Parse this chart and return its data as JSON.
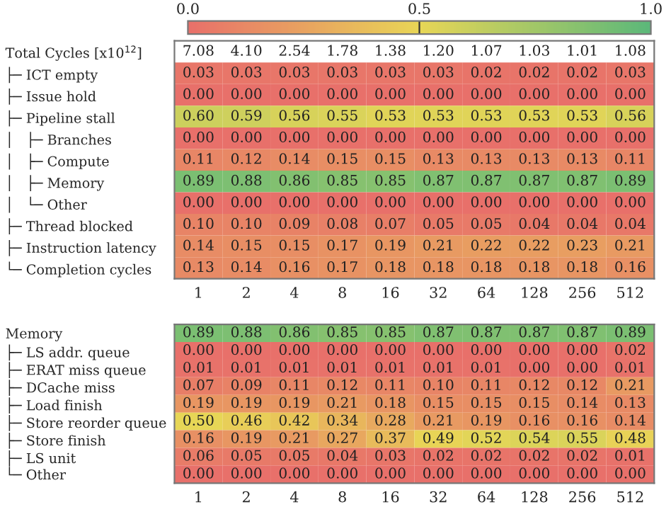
{
  "chart_data": [
    {
      "type": "heatmap",
      "categories": [
        "1",
        "2",
        "4",
        "8",
        "16",
        "32",
        "64",
        "128",
        "256",
        "512"
      ],
      "y_categories": [
        "Total Cycles [x10$^{12}$]",
        "├─ ICT empty",
        "├─ Issue hold",
        "├─ Pipeline stall",
        "│   ├─ Branches",
        "│   ├─ Compute",
        "│   ├─ Memory",
        "│   └─ Other",
        "├─ Thread blocked",
        "├─ Instruction latency",
        "└─ Completion cycles"
      ],
      "cells": [
        [
          null,
          null,
          null,
          null,
          null,
          null,
          null,
          null,
          null,
          null
        ],
        [
          0.03,
          0.03,
          0.03,
          0.03,
          0.03,
          0.03,
          0.02,
          0.02,
          0.02,
          0.03
        ],
        [
          0.0,
          0.0,
          0.0,
          0.0,
          0.0,
          0.0,
          0.0,
          0.0,
          0.0,
          0.0
        ],
        [
          0.6,
          0.59,
          0.56,
          0.55,
          0.53,
          0.53,
          0.53,
          0.53,
          0.53,
          0.56
        ],
        [
          0.0,
          0.0,
          0.0,
          0.0,
          0.0,
          0.0,
          0.0,
          0.0,
          0.0,
          0.0
        ],
        [
          0.11,
          0.12,
          0.14,
          0.15,
          0.15,
          0.13,
          0.13,
          0.13,
          0.13,
          0.11
        ],
        [
          0.89,
          0.88,
          0.86,
          0.85,
          0.85,
          0.87,
          0.87,
          0.87,
          0.87,
          0.89
        ],
        [
          0.0,
          0.0,
          0.0,
          0.0,
          0.0,
          0.0,
          0.0,
          0.0,
          0.0,
          0.0
        ],
        [
          0.1,
          0.1,
          0.09,
          0.08,
          0.07,
          0.05,
          0.05,
          0.04,
          0.04,
          0.04
        ],
        [
          0.14,
          0.15,
          0.15,
          0.17,
          0.19,
          0.21,
          0.22,
          0.22,
          0.23,
          0.21
        ],
        [
          0.13,
          0.14,
          0.16,
          0.17,
          0.18,
          0.18,
          0.18,
          0.18,
          0.18,
          0.16
        ]
      ],
      "cell_labels": [
        [
          "7.08",
          "4.10",
          "2.54",
          "1.78",
          "1.38",
          "1.20",
          "1.07",
          "1.03",
          "1.01",
          "1.08"
        ],
        [
          "0.03",
          "0.03",
          "0.03",
          "0.03",
          "0.03",
          "0.03",
          "0.02",
          "0.02",
          "0.02",
          "0.03"
        ],
        [
          "0.00",
          "0.00",
          "0.00",
          "0.00",
          "0.00",
          "0.00",
          "0.00",
          "0.00",
          "0.00",
          "0.00"
        ],
        [
          "0.60",
          "0.59",
          "0.56",
          "0.55",
          "0.53",
          "0.53",
          "0.53",
          "0.53",
          "0.53",
          "0.56"
        ],
        [
          "0.00",
          "0.00",
          "0.00",
          "0.00",
          "0.00",
          "0.00",
          "0.00",
          "0.00",
          "0.00",
          "0.00"
        ],
        [
          "0.11",
          "0.12",
          "0.14",
          "0.15",
          "0.15",
          "0.13",
          "0.13",
          "0.13",
          "0.13",
          "0.11"
        ],
        [
          "0.89",
          "0.88",
          "0.86",
          "0.85",
          "0.85",
          "0.87",
          "0.87",
          "0.87",
          "0.87",
          "0.89"
        ],
        [
          "0.00",
          "0.00",
          "0.00",
          "0.00",
          "0.00",
          "0.00",
          "0.00",
          "0.00",
          "0.00",
          "0.00"
        ],
        [
          "0.10",
          "0.10",
          "0.09",
          "0.08",
          "0.07",
          "0.05",
          "0.05",
          "0.04",
          "0.04",
          "0.04"
        ],
        [
          "0.14",
          "0.15",
          "0.15",
          "0.17",
          "0.19",
          "0.21",
          "0.22",
          "0.22",
          "0.23",
          "0.21"
        ],
        [
          "0.13",
          "0.14",
          "0.16",
          "0.17",
          "0.18",
          "0.18",
          "0.18",
          "0.18",
          "0.18",
          "0.16"
        ]
      ],
      "clim": [
        0.0,
        1.0
      ],
      "cticks": [
        {
          "value": 0.0,
          "label": "0.0"
        },
        {
          "value": 0.5,
          "label": "0.5"
        },
        {
          "value": 1.0,
          "label": "1.0"
        }
      ]
    },
    {
      "type": "heatmap",
      "categories": [
        "1",
        "2",
        "4",
        "8",
        "16",
        "32",
        "64",
        "128",
        "256",
        "512"
      ],
      "y_categories": [
        "Memory",
        "├─ LS addr. queue",
        "├─ ERAT miss queue",
        "├─ DCache miss",
        "├─ Load finish",
        "├─ Store reorder queue",
        "├─ Store finish",
        "├─ LS unit",
        "└─ Other"
      ],
      "cells": [
        [
          0.89,
          0.88,
          0.86,
          0.85,
          0.85,
          0.87,
          0.87,
          0.87,
          0.87,
          0.89
        ],
        [
          0.0,
          0.0,
          0.0,
          0.0,
          0.0,
          0.0,
          0.0,
          0.0,
          0.0,
          0.02
        ],
        [
          0.01,
          0.01,
          0.01,
          0.01,
          0.01,
          0.01,
          0.01,
          0.0,
          0.0,
          0.01
        ],
        [
          0.07,
          0.09,
          0.11,
          0.12,
          0.11,
          0.1,
          0.11,
          0.12,
          0.12,
          0.21
        ],
        [
          0.19,
          0.19,
          0.19,
          0.21,
          0.18,
          0.15,
          0.15,
          0.15,
          0.14,
          0.13
        ],
        [
          0.5,
          0.46,
          0.42,
          0.34,
          0.28,
          0.21,
          0.19,
          0.16,
          0.16,
          0.14
        ],
        [
          0.16,
          0.19,
          0.21,
          0.27,
          0.37,
          0.49,
          0.52,
          0.54,
          0.55,
          0.48
        ],
        [
          0.06,
          0.05,
          0.05,
          0.04,
          0.03,
          0.02,
          0.02,
          0.02,
          0.02,
          0.01
        ],
        [
          0.0,
          0.0,
          0.0,
          0.0,
          0.0,
          0.0,
          0.0,
          0.0,
          0.0,
          0.0
        ]
      ],
      "cell_labels": [
        [
          "0.89",
          "0.88",
          "0.86",
          "0.85",
          "0.85",
          "0.87",
          "0.87",
          "0.87",
          "0.87",
          "0.89"
        ],
        [
          "0.00",
          "0.00",
          "0.00",
          "0.00",
          "0.00",
          "0.00",
          "0.00",
          "0.00",
          "0.00",
          "0.02"
        ],
        [
          "0.01",
          "0.01",
          "0.01",
          "0.01",
          "0.01",
          "0.01",
          "0.01",
          "0.00",
          "0.00",
          "0.01"
        ],
        [
          "0.07",
          "0.09",
          "0.11",
          "0.12",
          "0.11",
          "0.10",
          "0.11",
          "0.12",
          "0.12",
          "0.21"
        ],
        [
          "0.19",
          "0.19",
          "0.19",
          "0.21",
          "0.18",
          "0.15",
          "0.15",
          "0.15",
          "0.14",
          "0.13"
        ],
        [
          "0.50",
          "0.46",
          "0.42",
          "0.34",
          "0.28",
          "0.21",
          "0.19",
          "0.16",
          "0.16",
          "0.14"
        ],
        [
          "0.16",
          "0.19",
          "0.21",
          "0.27",
          "0.37",
          "0.49",
          "0.52",
          "0.54",
          "0.55",
          "0.48"
        ],
        [
          "0.06",
          "0.05",
          "0.05",
          "0.04",
          "0.03",
          "0.02",
          "0.02",
          "0.02",
          "0.02",
          "0.01"
        ],
        [
          "0.00",
          "0.00",
          "0.00",
          "0.00",
          "0.00",
          "0.00",
          "0.00",
          "0.00",
          "0.00",
          "0.00"
        ]
      ]
    }
  ]
}
